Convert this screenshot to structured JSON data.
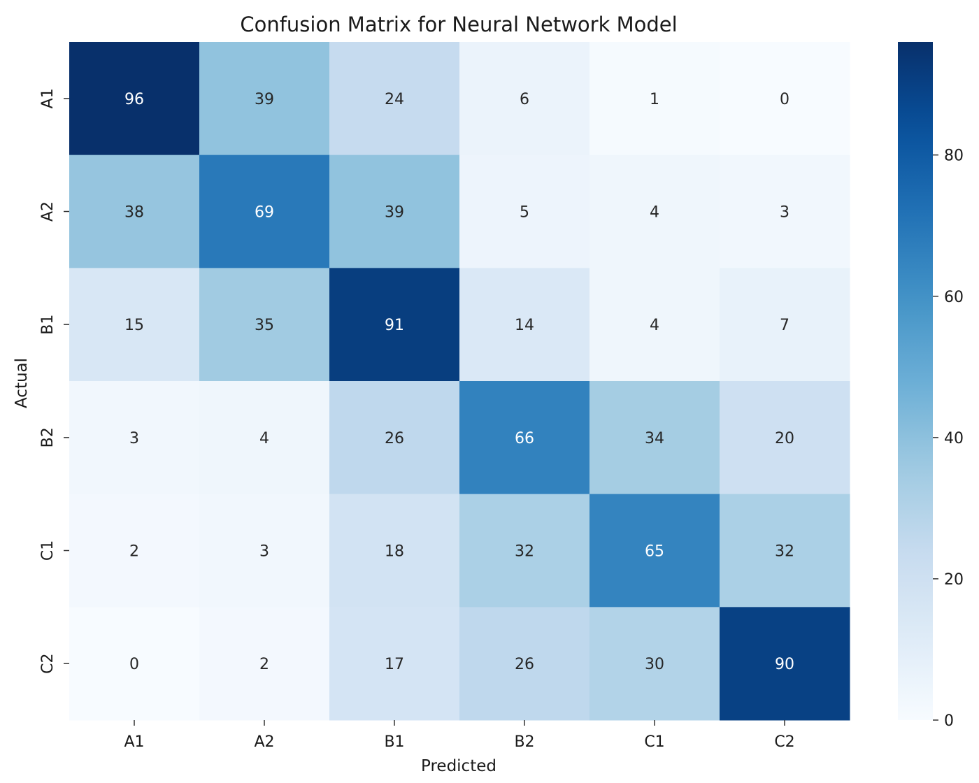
{
  "chart_data": {
    "type": "heatmap",
    "title": "Confusion Matrix for Neural Network Model",
    "xlabel": "Predicted",
    "ylabel": "Actual",
    "x_categories": [
      "A1",
      "A2",
      "B1",
      "B2",
      "C1",
      "C2"
    ],
    "y_categories": [
      "A1",
      "A2",
      "B1",
      "B2",
      "C1",
      "C2"
    ],
    "values": [
      [
        96,
        39,
        24,
        6,
        1,
        0
      ],
      [
        38,
        69,
        39,
        5,
        4,
        3
      ],
      [
        15,
        35,
        91,
        14,
        4,
        7
      ],
      [
        3,
        4,
        26,
        66,
        34,
        20
      ],
      [
        2,
        3,
        18,
        32,
        65,
        32
      ],
      [
        0,
        2,
        17,
        26,
        30,
        90
      ]
    ],
    "colorbar": {
      "colormap": "Blues",
      "range": [
        0,
        96
      ],
      "ticks": [
        0,
        20,
        40,
        60,
        80
      ]
    },
    "annotated": true,
    "grid": false
  }
}
